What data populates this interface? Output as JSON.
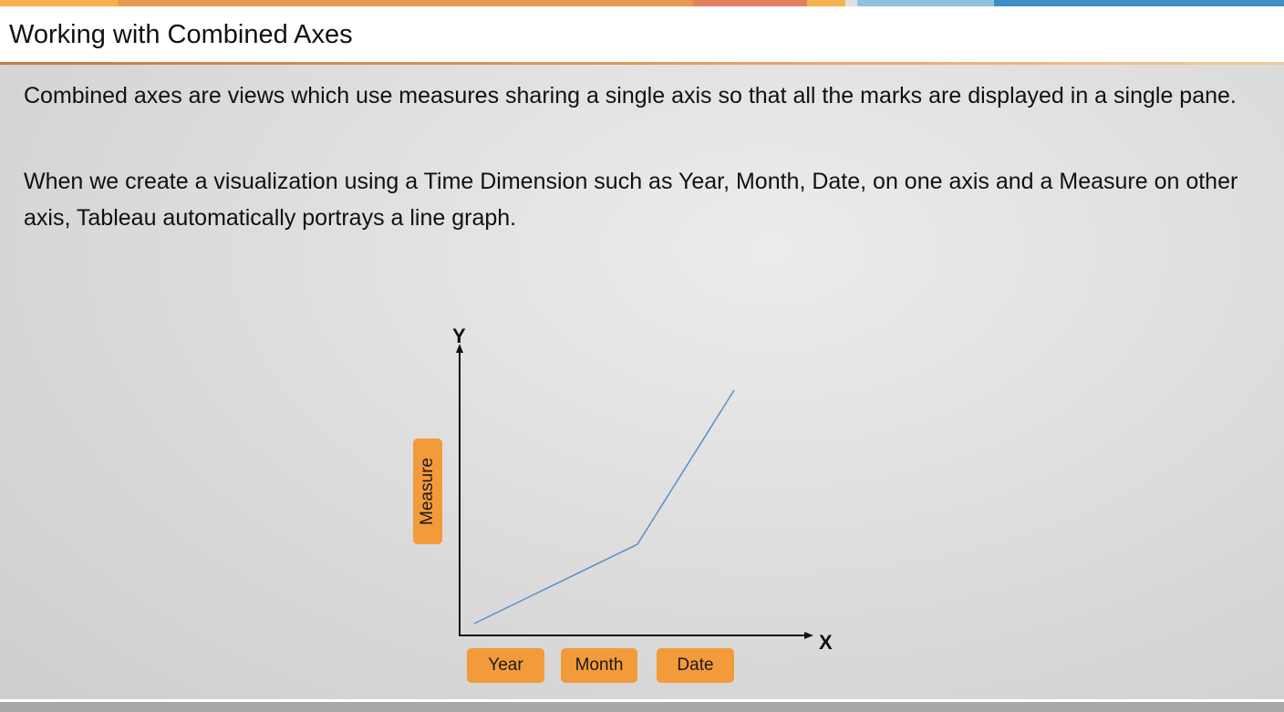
{
  "title": "Working with Combined Axes",
  "paragraphs": [
    "Combined axes are views which use measures sharing a single axis so that all the marks are displayed in a single pane.",
    "When we create a visualization using a Time Dimension such as Year, Month, Date, on one axis and a Measure on other axis, Tableau automatically portrays a line graph."
  ],
  "diagram": {
    "y_axis_letter": "Y",
    "x_axis_letter": "X",
    "y_tag": "Measure",
    "x_tags": [
      "Year",
      "Month",
      "Date"
    ],
    "line_color": "#5b8fc9",
    "tag_color": "#f39a3a"
  },
  "colors": {
    "topbar": [
      "#f5b24a",
      "#e8974e",
      "#e4805a",
      "#f5b24a",
      "#ffffff",
      "#8fc3dc",
      "#3e8fc6"
    ]
  }
}
